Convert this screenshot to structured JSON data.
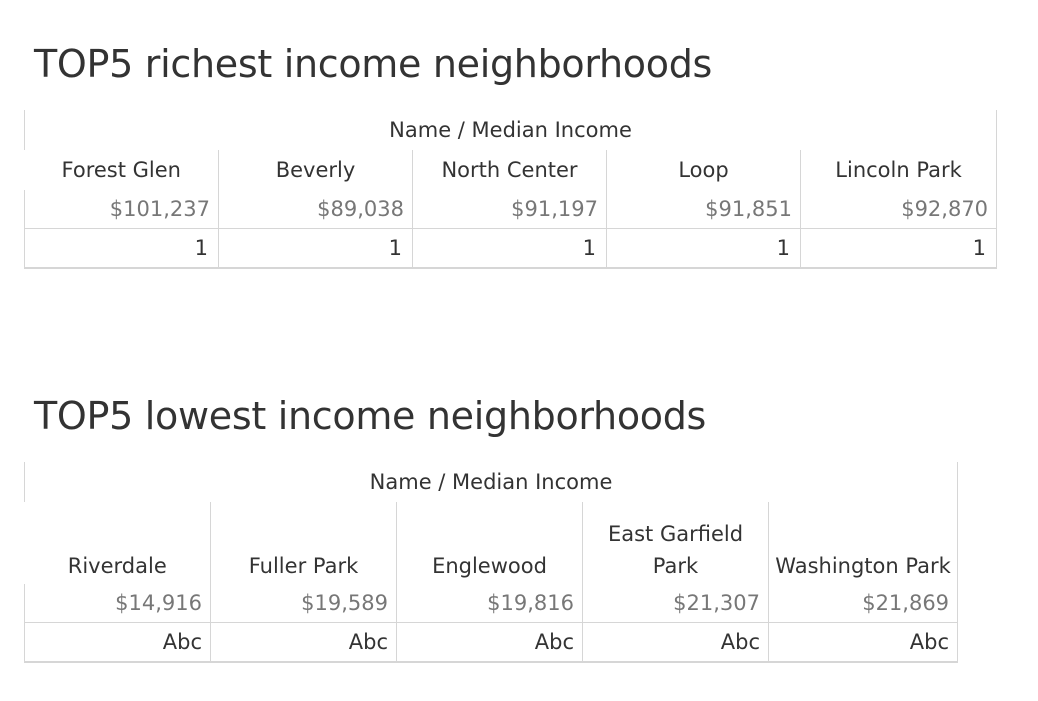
{
  "sheets": [
    {
      "title": "TOP5 richest income neighborhoods",
      "header": "Name  /  Median Income",
      "columns": [
        {
          "name": "Forest Glen",
          "income": "$101,237",
          "mark": "1"
        },
        {
          "name": "Beverly",
          "income": "$89,038",
          "mark": "1"
        },
        {
          "name": "North Center",
          "income": "$91,197",
          "mark": "1"
        },
        {
          "name": "Loop",
          "income": "$91,851",
          "mark": "1"
        },
        {
          "name": "Lincoln Park",
          "income": "$92,870",
          "mark": "1"
        }
      ]
    },
    {
      "title": "TOP5 lowest income neighborhoods",
      "header": "Name  /  Median Income",
      "columns": [
        {
          "name": "Riverdale",
          "income": "$14,916",
          "mark": "Abc"
        },
        {
          "name": "Fuller Park",
          "income": "$19,589",
          "mark": "Abc"
        },
        {
          "name": "Englewood",
          "income": "$19,816",
          "mark": "Abc"
        },
        {
          "name": "East Garfield Park",
          "income": "$21,307",
          "mark": "Abc"
        },
        {
          "name": "Washington Park",
          "income": "$21,869",
          "mark": "Abc"
        }
      ]
    }
  ]
}
